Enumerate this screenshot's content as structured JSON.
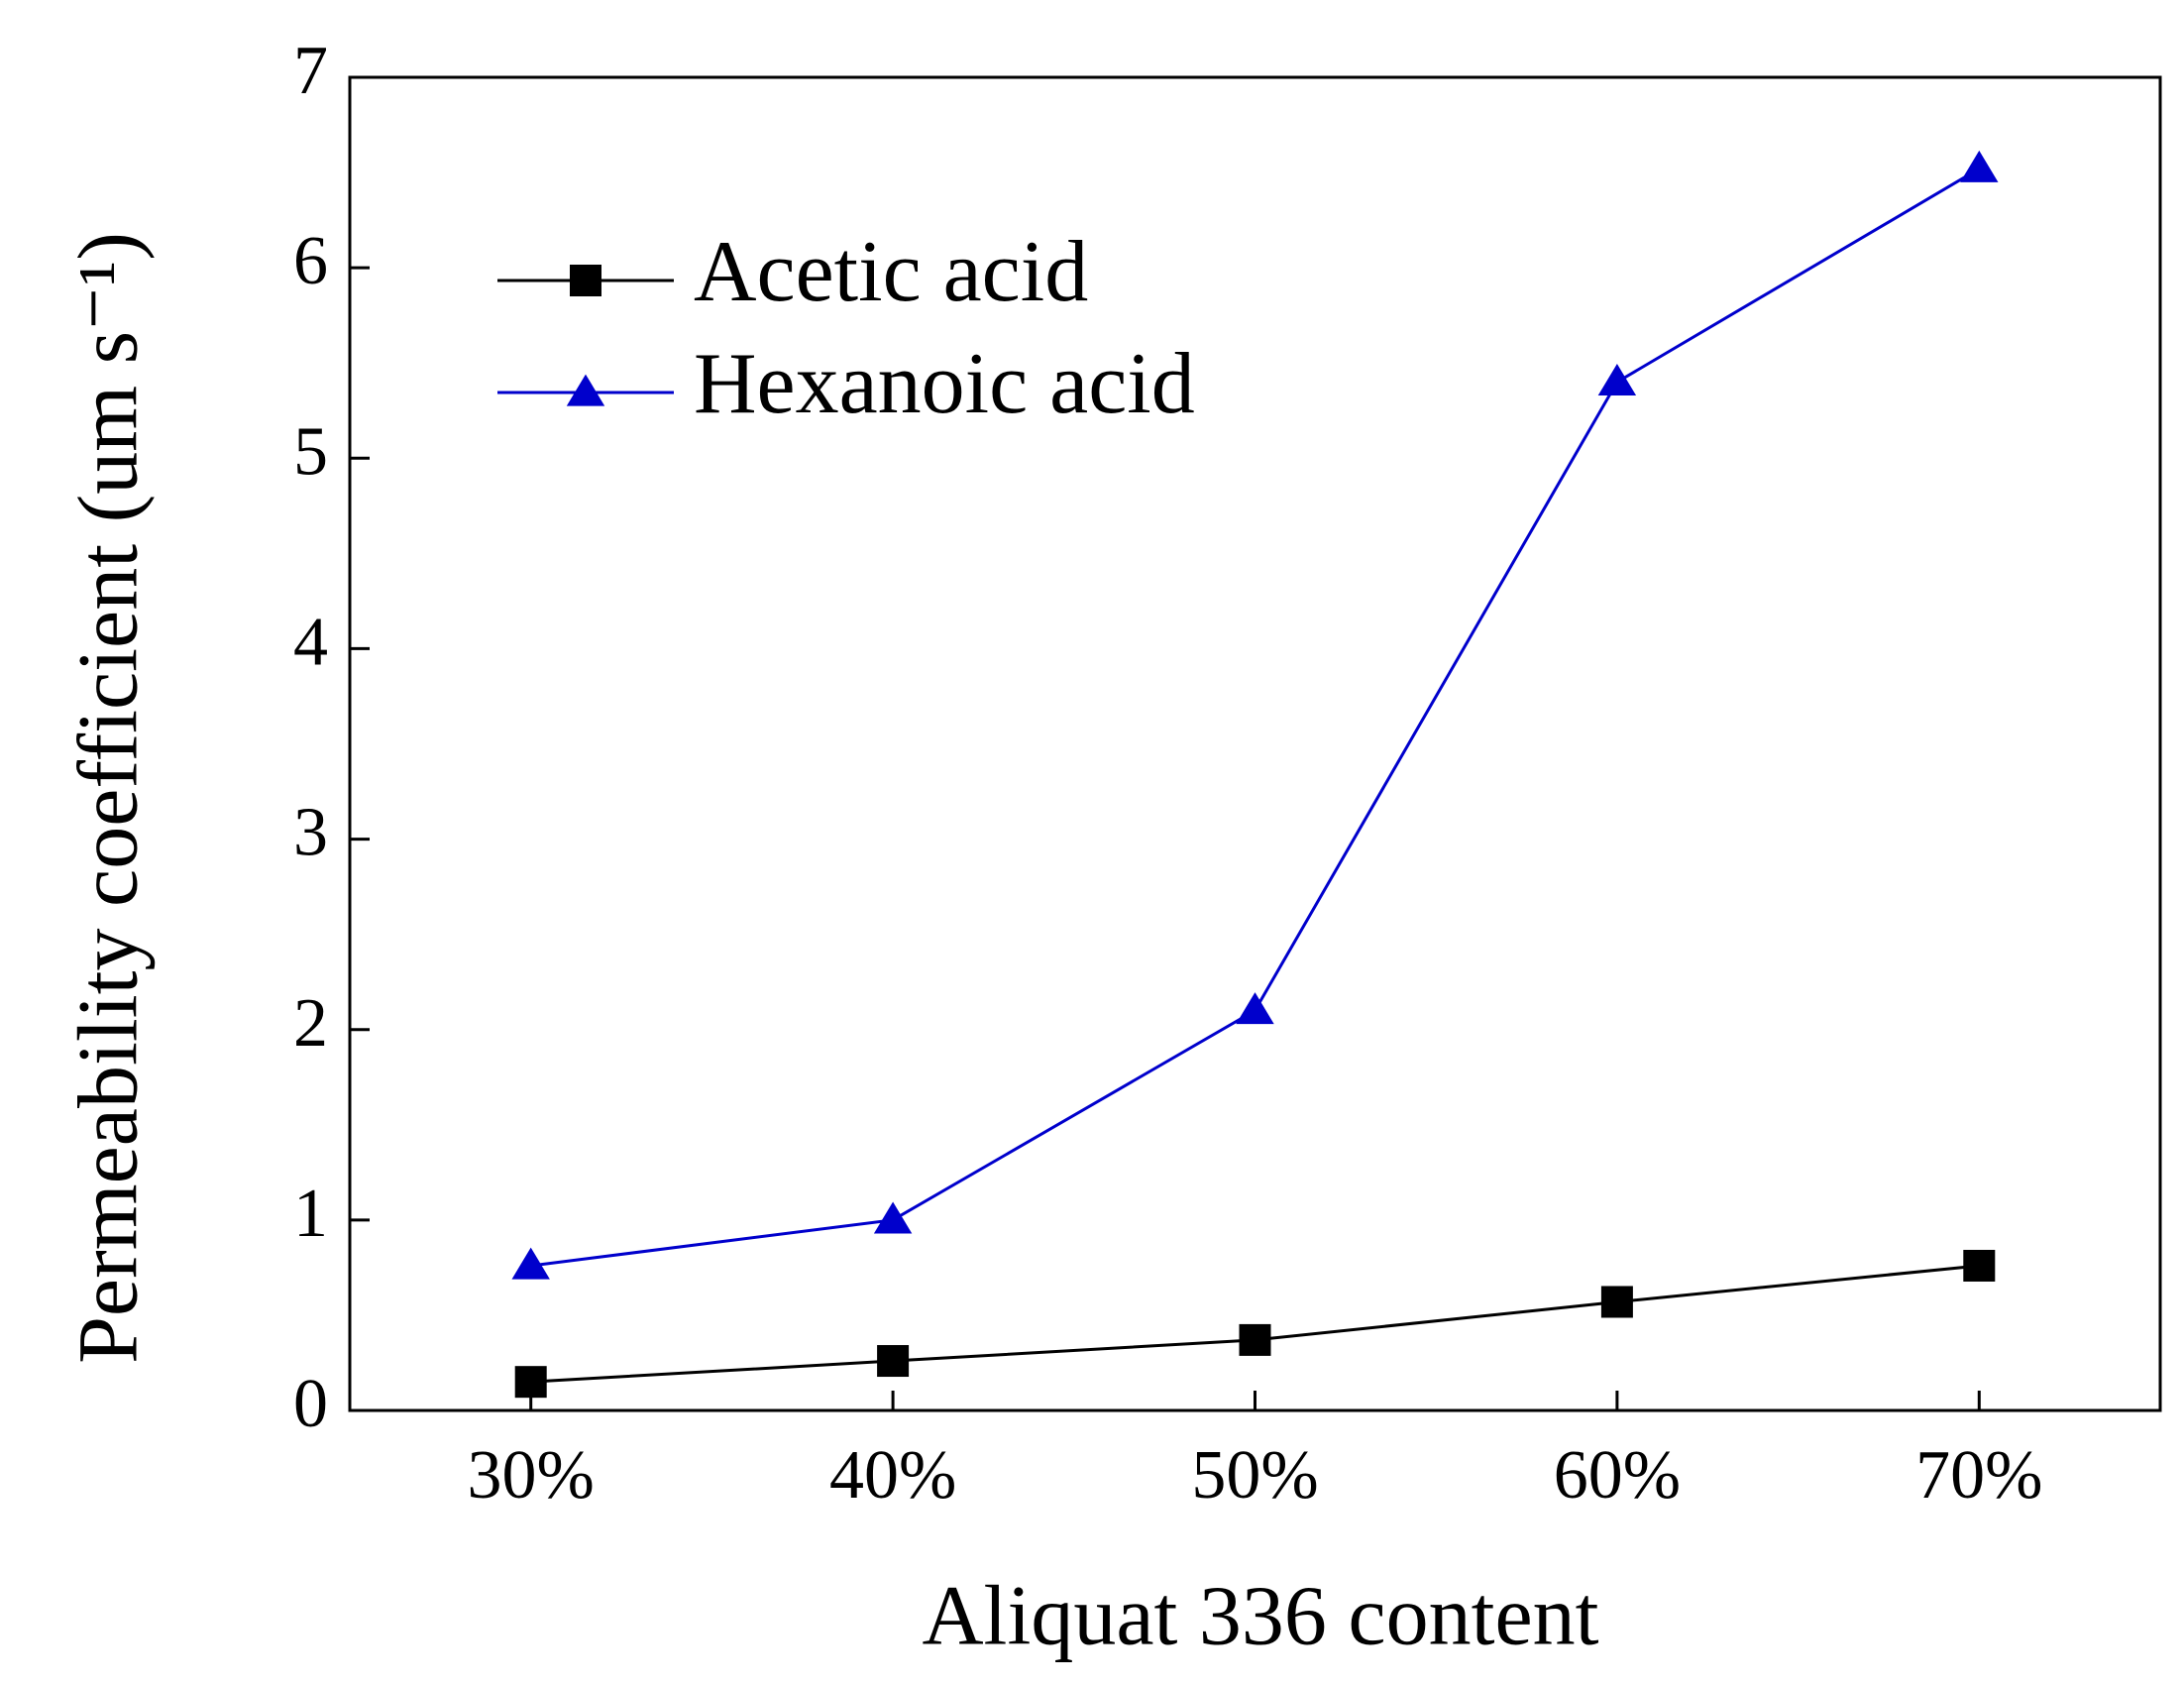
{
  "chart_data": {
    "type": "line",
    "x_label": "Aliquat 336 content",
    "y_label": "Permeability coefficient (um s⁻¹)",
    "categories": [
      "30%",
      "40%",
      "50%",
      "60%",
      "70%"
    ],
    "series": [
      {
        "name": "Acetic acid",
        "color": "#000000",
        "marker": "square",
        "values": [
          0.15,
          0.26,
          0.37,
          0.57,
          0.76
        ]
      },
      {
        "name": "Hexanoic acid",
        "color": "#0000cc",
        "marker": "triangle",
        "values": [
          0.76,
          1.0,
          2.1,
          5.4,
          6.52
        ]
      }
    ],
    "ylim": [
      0,
      7
    ],
    "yticks": [
      0,
      1,
      2,
      3,
      4,
      5,
      6,
      7
    ],
    "legend": "upper left",
    "grid": false
  }
}
